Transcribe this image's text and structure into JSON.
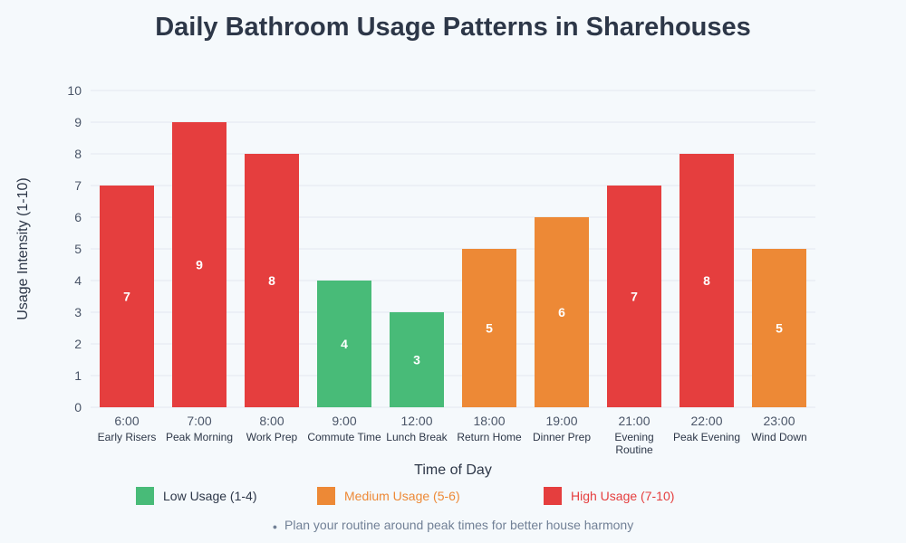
{
  "title": "Daily Bathroom Usage Patterns in Sharehouses",
  "tip": "Plan your routine around peak times for better house harmony",
  "legend": [
    {
      "label": "Low Usage (1-4)",
      "color": "#48bb78",
      "text_color": "#2d3748"
    },
    {
      "label": "Medium Usage (5-6)",
      "color": "#ed8936",
      "text_color": "#ed8936"
    },
    {
      "label": "High Usage (7-10)",
      "color": "#e53e3e",
      "text_color": "#e53e3e"
    }
  ],
  "chart_data": {
    "type": "bar",
    "title": "Daily Bathroom Usage Patterns in Sharehouses",
    "xlabel": "Time of Day",
    "ylabel": "Usage Intensity (1-10)",
    "ylim": [
      0,
      10
    ],
    "yticks": [
      0,
      1,
      2,
      3,
      4,
      5,
      6,
      7,
      8,
      9,
      10
    ],
    "grid": true,
    "legend_position": "bottom",
    "categories": [
      "6:00",
      "7:00",
      "8:00",
      "9:00",
      "12:00",
      "18:00",
      "19:00",
      "21:00",
      "22:00",
      "23:00"
    ],
    "sublabels": [
      "Early Risers",
      "Peak Morning",
      "Work Prep",
      "Commute Time",
      "Lunch Break",
      "Return Home",
      "Dinner Prep",
      "Evening Routine",
      "Peak Evening",
      "Wind Down"
    ],
    "values": [
      7,
      9,
      8,
      4,
      3,
      5,
      6,
      7,
      8,
      5
    ]
  }
}
